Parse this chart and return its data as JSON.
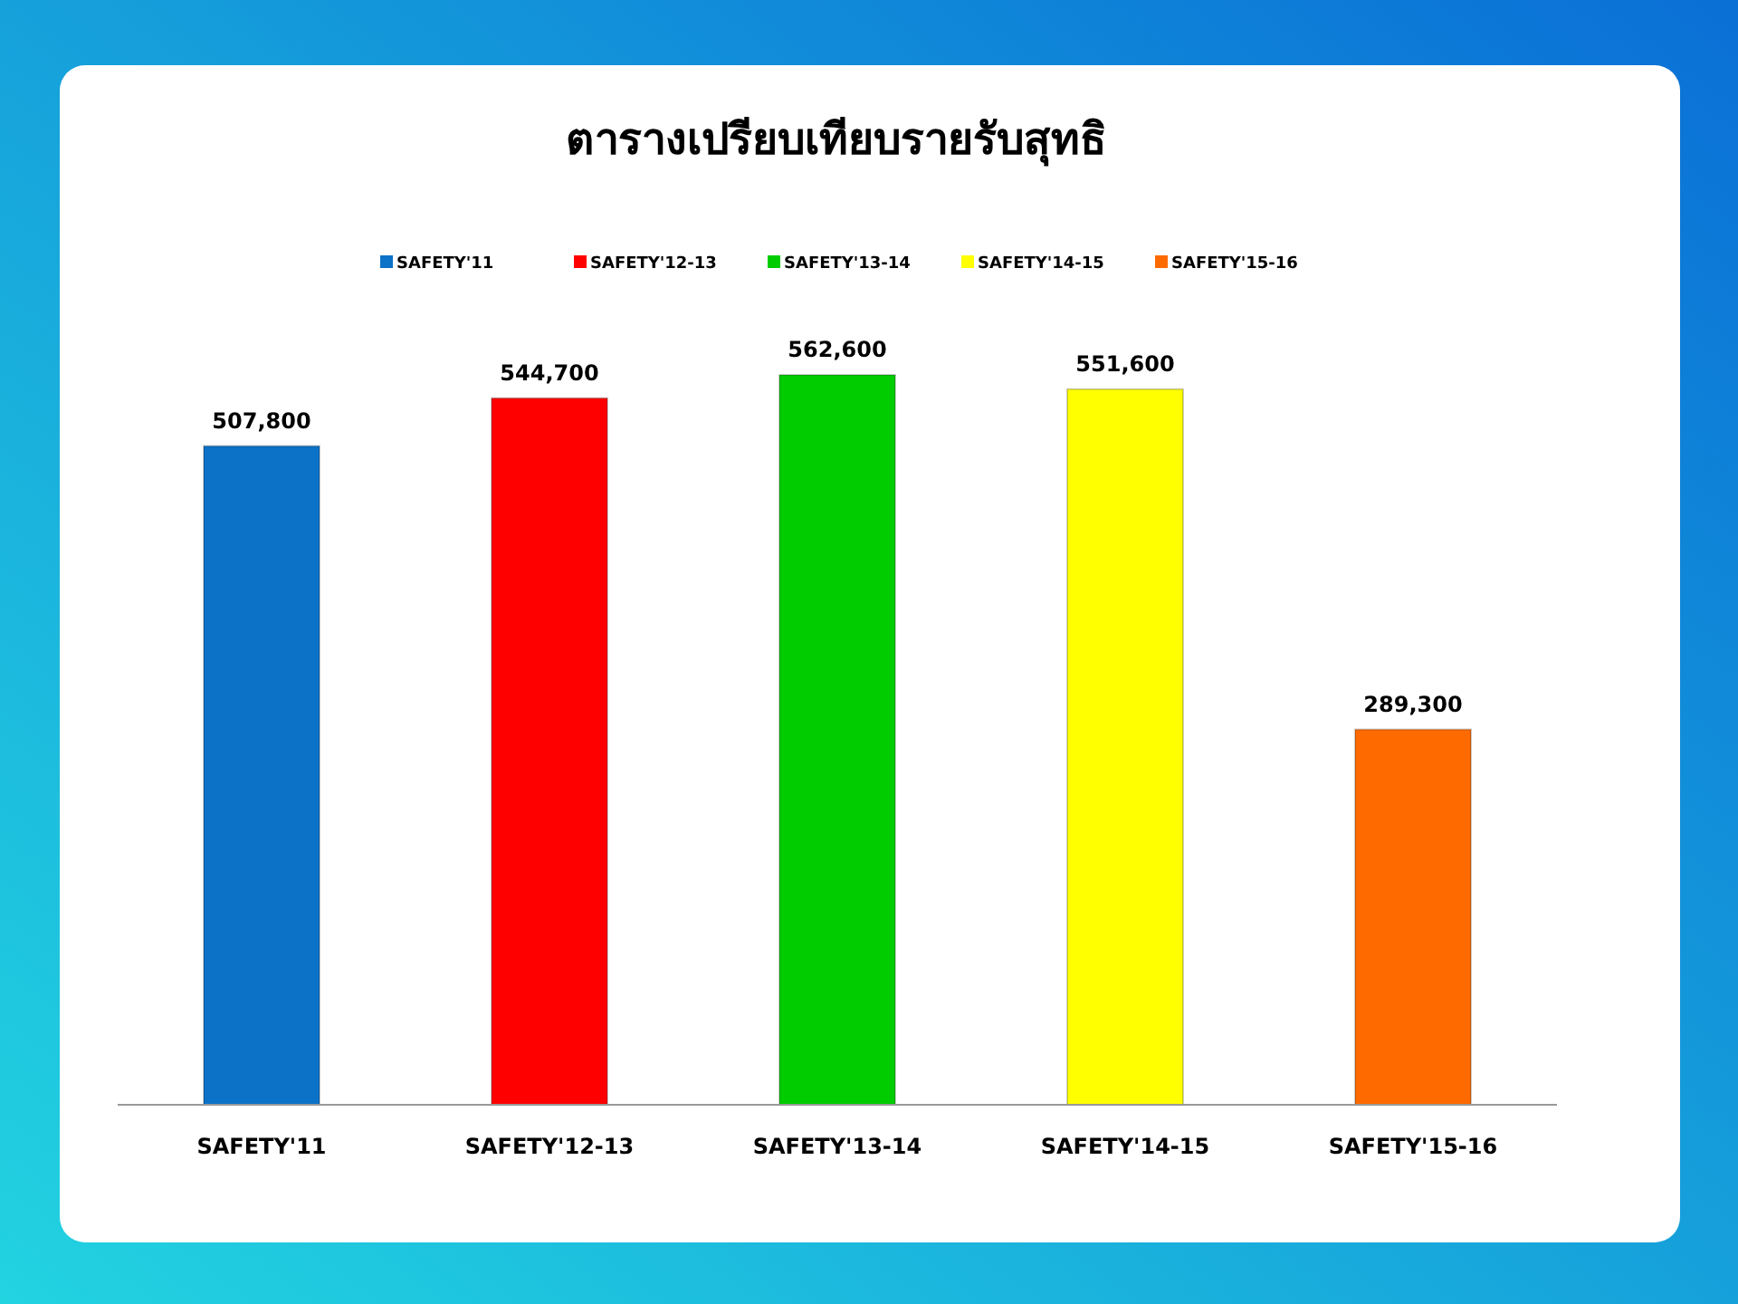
{
  "chart_data": {
    "type": "bar",
    "title": "ตารางเปรียบเทียบรายรับสุทธิ",
    "categories": [
      "SAFETY'11",
      "SAFETY'12-13",
      "SAFETY'13-14",
      "SAFETY'14-15",
      "SAFETY'15-16"
    ],
    "series": [
      {
        "name": "SAFETY'11",
        "color": "#0b72c8",
        "values": [
          507800,
          null,
          null,
          null,
          null
        ],
        "value_labels": [
          "507,800",
          null,
          null,
          null,
          null
        ]
      },
      {
        "name": "SAFETY'12-13",
        "color": "#ff0000",
        "values": [
          null,
          544700,
          null,
          null,
          null
        ],
        "value_labels": [
          null,
          "544,700",
          null,
          null,
          null
        ]
      },
      {
        "name": "SAFETY'13-14",
        "color": "#00cc00",
        "values": [
          null,
          null,
          562600,
          null,
          null
        ],
        "value_labels": [
          null,
          null,
          "562,600",
          null,
          null
        ]
      },
      {
        "name": "SAFETY'14-15",
        "color": "#ffff00",
        "values": [
          null,
          null,
          null,
          551600,
          null
        ],
        "value_labels": [
          null,
          null,
          null,
          "551,600",
          null
        ]
      },
      {
        "name": "SAFETY'15-16",
        "color": "#ff6a00",
        "values": [
          null,
          null,
          null,
          null,
          289300
        ],
        "value_labels": [
          null,
          null,
          null,
          null,
          "289,300"
        ]
      }
    ],
    "legend": "top",
    "grid": false
  }
}
